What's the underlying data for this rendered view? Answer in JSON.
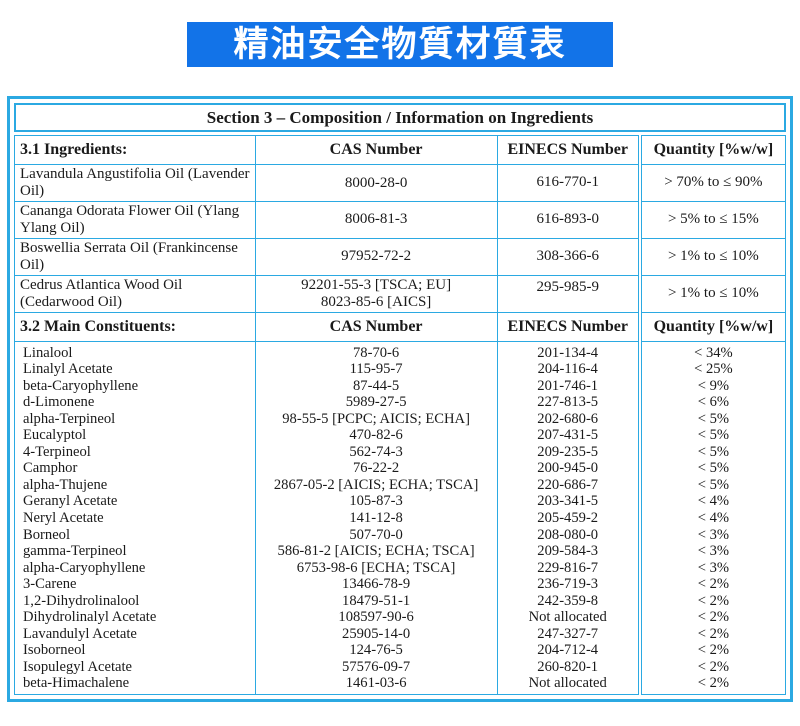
{
  "page_title": "精油安全物質材質表",
  "colors": {
    "banner_bg": "#1273e8",
    "banner_text": "#ffffff",
    "table_border": "#2ba9e2",
    "text_color": "#1a1a1a"
  },
  "section_header": "Section 3 – Composition / Information on Ingredients",
  "ingredients": {
    "headers": [
      "3.1 Ingredients:",
      "CAS Number",
      "EINECS Number",
      "Quantity [%w/w]"
    ],
    "rows": [
      {
        "name": "Lavandula Angustifolia Oil (Lavender Oil)",
        "cas": "8000-28-0",
        "einecs": "616-770-1",
        "quantity": "> 70% to ≤ 90%"
      },
      {
        "name": "Cananga Odorata Flower Oil (Ylang Ylang Oil)",
        "cas": "8006-81-3",
        "einecs": "616-893-0",
        "quantity": "> 5% to ≤ 15%"
      },
      {
        "name": "Boswellia Serrata Oil (Frankincense Oil)",
        "cas": "97952-72-2",
        "einecs": "308-366-6",
        "quantity": "> 1% to ≤ 10%"
      },
      {
        "name": "Cedrus Atlantica Wood Oil (Cedarwood Oil)",
        "cas": "92201-55-3 [TSCA; EU]\n8023-85-6 [AICS]",
        "einecs": "295-985-9",
        "quantity": "> 1% to ≤ 10%"
      }
    ]
  },
  "constituents": {
    "headers": [
      "3.2 Main Constituents:",
      "CAS Number",
      "EINECS Number",
      "Quantity [%w/w]"
    ],
    "rows": [
      {
        "name": "Linalool",
        "cas": "78-70-6",
        "einecs": "201-134-4",
        "quantity": "< 34%"
      },
      {
        "name": "Linalyl Acetate",
        "cas": "115-95-7",
        "einecs": "204-116-4",
        "quantity": "< 25%"
      },
      {
        "name": "beta-Caryophyllene",
        "cas": "87-44-5",
        "einecs": "201-746-1",
        "quantity": "< 9%"
      },
      {
        "name": "d-Limonene",
        "cas": "5989-27-5",
        "einecs": "227-813-5",
        "quantity": "< 6%"
      },
      {
        "name": "alpha-Terpineol",
        "cas": "98-55-5 [PCPC; AICIS; ECHA]",
        "einecs": "202-680-6",
        "quantity": "< 5%"
      },
      {
        "name": "Eucalyptol",
        "cas": "470-82-6",
        "einecs": "207-431-5",
        "quantity": "< 5%"
      },
      {
        "name": "4-Terpineol",
        "cas": "562-74-3",
        "einecs": "209-235-5",
        "quantity": "< 5%"
      },
      {
        "name": "Camphor",
        "cas": "76-22-2",
        "einecs": "200-945-0",
        "quantity": "< 5%"
      },
      {
        "name": "alpha-Thujene",
        "cas": "2867-05-2 [AICIS; ECHA; TSCA]",
        "einecs": "220-686-7",
        "quantity": "< 5%"
      },
      {
        "name": "Geranyl Acetate",
        "cas": "105-87-3",
        "einecs": "203-341-5",
        "quantity": "< 4%"
      },
      {
        "name": "Neryl Acetate",
        "cas": "141-12-8",
        "einecs": "205-459-2",
        "quantity": "< 4%"
      },
      {
        "name": "Borneol",
        "cas": "507-70-0",
        "einecs": "208-080-0",
        "quantity": "< 3%"
      },
      {
        "name": "gamma-Terpineol",
        "cas": "586-81-2 [AICIS; ECHA; TSCA]",
        "einecs": "209-584-3",
        "quantity": "< 3%"
      },
      {
        "name": "alpha-Caryophyllene",
        "cas": "6753-98-6 [ECHA; TSCA]",
        "einecs": "229-816-7",
        "quantity": "< 3%"
      },
      {
        "name": "3-Carene",
        "cas": "13466-78-9",
        "einecs": "236-719-3",
        "quantity": "< 2%"
      },
      {
        "name": "1,2-Dihydrolinalool",
        "cas": "18479-51-1",
        "einecs": "242-359-8",
        "quantity": "< 2%"
      },
      {
        "name": "Dihydrolinalyl Acetate",
        "cas": "108597-90-6",
        "einecs": "Not allocated",
        "quantity": "< 2%"
      },
      {
        "name": "Lavandulyl Acetate",
        "cas": "25905-14-0",
        "einecs": "247-327-7",
        "quantity": "< 2%"
      },
      {
        "name": "Isoborneol",
        "cas": "124-76-5",
        "einecs": "204-712-4",
        "quantity": "< 2%"
      },
      {
        "name": "Isopulegyl Acetate",
        "cas": "57576-09-7",
        "einecs": "260-820-1",
        "quantity": "< 2%"
      },
      {
        "name": "beta-Himachalene",
        "cas": "1461-03-6",
        "einecs": "Not allocated",
        "quantity": "< 2%"
      }
    ]
  }
}
